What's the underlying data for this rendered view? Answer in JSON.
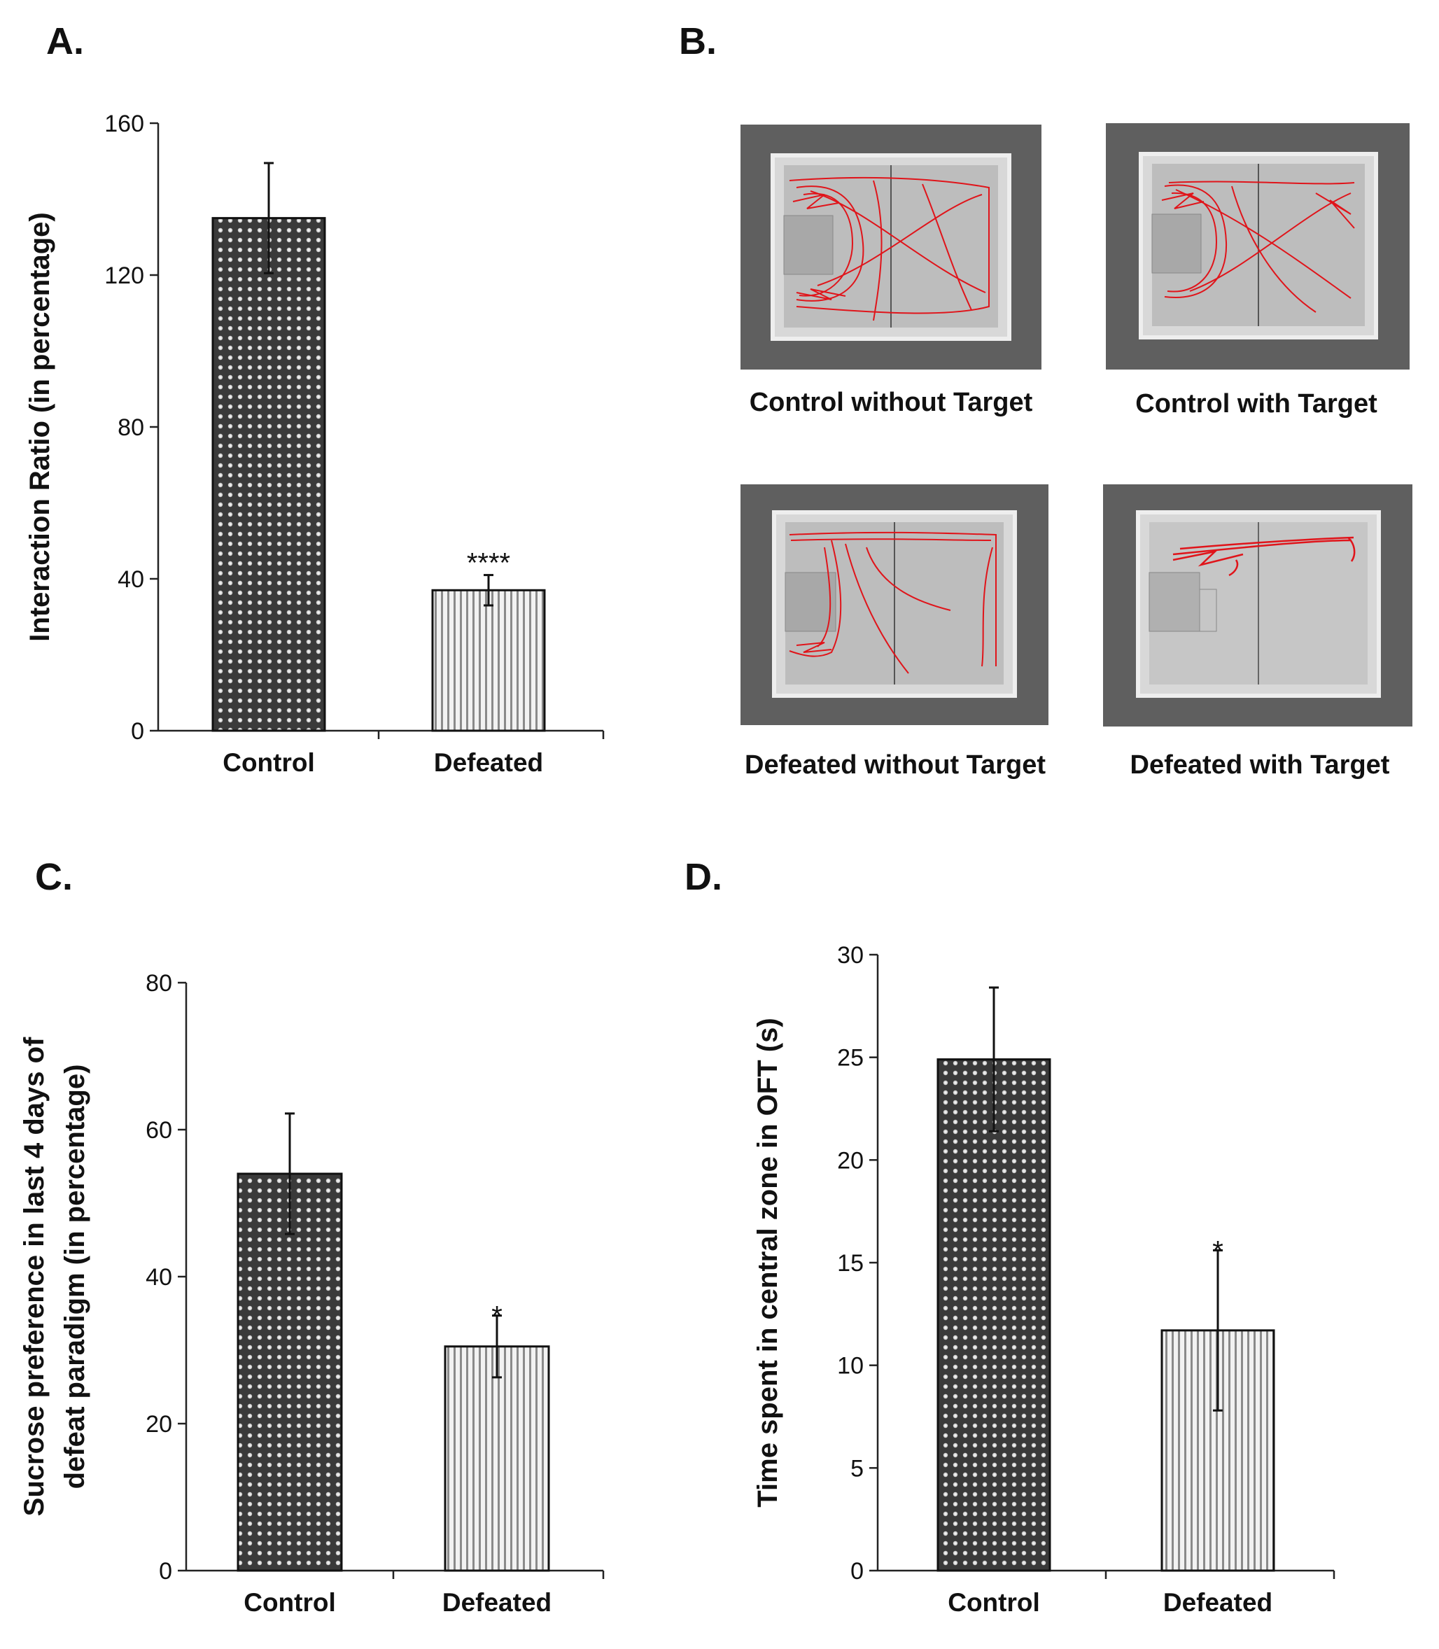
{
  "panels": {
    "a": {
      "letter": "A."
    },
    "b": {
      "letter": "B.",
      "images": [
        {
          "caption": "Control without Target"
        },
        {
          "caption": "Control with Target"
        },
        {
          "caption": "Defeated without Target"
        },
        {
          "caption": "Defeated with Target"
        }
      ]
    },
    "c": {
      "letter": "C."
    },
    "d": {
      "letter": "D."
    }
  },
  "colors": {
    "control_bar": "#3a3a3a",
    "defeated_bar": "#e6e6e6",
    "track": "#e0141a",
    "arena_outer": "#5f5f5f",
    "arena_floor": "#cfcfcf"
  },
  "chart_data": [
    {
      "id": "A",
      "type": "bar",
      "title": "",
      "xlabel": "",
      "ylabel": "Interaction Ratio (in percentage)",
      "categories": [
        "Control",
        "Defeated"
      ],
      "values": [
        135,
        37
      ],
      "errors": [
        14.5,
        4
      ],
      "significance": [
        "",
        "****"
      ],
      "ylim": [
        0,
        160
      ],
      "yticks": [
        0,
        40,
        80,
        120,
        160
      ],
      "grid": false
    },
    {
      "id": "C",
      "type": "bar",
      "title": "",
      "xlabel": "",
      "ylabel": [
        "Sucrose preference in last 4 days of",
        "defeat paradigm (in percentage)"
      ],
      "categories": [
        "Control",
        "Defeated"
      ],
      "values": [
        54,
        30.5
      ],
      "errors": [
        8.2,
        4.2
      ],
      "significance": [
        "",
        "*"
      ],
      "ylim": [
        0,
        80
      ],
      "yticks": [
        0,
        20,
        40,
        60,
        80
      ],
      "grid": false
    },
    {
      "id": "D",
      "type": "bar",
      "title": "",
      "xlabel": "",
      "ylabel": "Time spent in central zone in OFT (s)",
      "categories": [
        "Control",
        "Defeated"
      ],
      "values": [
        24.9,
        11.7
      ],
      "errors": [
        3.5,
        3.9
      ],
      "significance": [
        "",
        "*"
      ],
      "ylim": [
        0,
        30
      ],
      "yticks": [
        0,
        5,
        10,
        15,
        20,
        25,
        30
      ],
      "grid": false
    }
  ]
}
